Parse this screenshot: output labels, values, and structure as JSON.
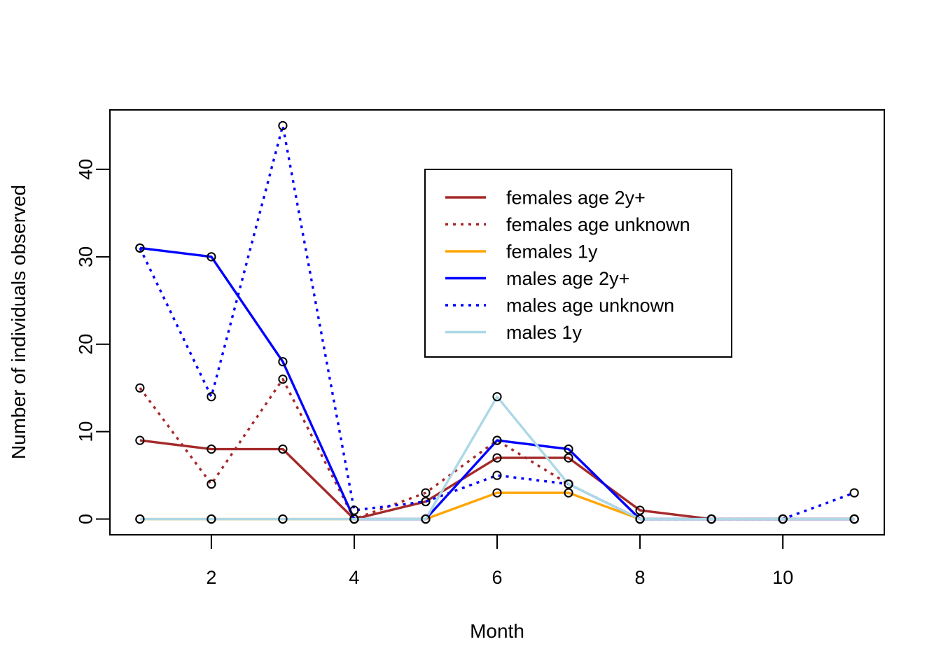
{
  "chart_data": {
    "type": "line",
    "title": "",
    "xlabel": "Month",
    "ylabel": "Number of individuals observed",
    "xlim": [
      0.58,
      11.42
    ],
    "ylim": [
      -1.8,
      46.8
    ],
    "x_ticks": [
      2,
      4,
      6,
      8,
      10
    ],
    "y_ticks": [
      0,
      10,
      20,
      30,
      40
    ],
    "grid": false,
    "legend_position": "top-right",
    "x": [
      1,
      2,
      3,
      4,
      5,
      6,
      7,
      8,
      9,
      10,
      11
    ],
    "series": [
      {
        "name": "females age 2y+",
        "color": "#a52a2a",
        "dash": "solid",
        "values": [
          9,
          8,
          8,
          0,
          2,
          7,
          7,
          1,
          0,
          0,
          0
        ]
      },
      {
        "name": "females age unknown",
        "color": "#a52a2a",
        "dash": "dotted",
        "values": [
          15,
          4,
          16,
          0,
          3,
          9,
          4,
          0,
          0,
          0,
          0
        ]
      },
      {
        "name": "females 1y",
        "color": "#ffa500",
        "dash": "solid",
        "values": [
          0,
          0,
          0,
          0,
          0,
          3,
          3,
          0,
          0,
          0,
          0
        ]
      },
      {
        "name": "males age 2y+",
        "color": "#0000ff",
        "dash": "solid",
        "values": [
          31,
          30,
          18,
          0,
          0,
          9,
          8,
          0,
          0,
          0,
          0
        ]
      },
      {
        "name": "males age unknown",
        "color": "#0000ff",
        "dash": "dotted",
        "values": [
          31,
          14,
          45,
          1,
          2,
          5,
          4,
          0,
          0,
          0,
          3
        ]
      },
      {
        "name": "males 1y",
        "color": "#add8e6",
        "dash": "solid",
        "values": [
          0,
          0,
          0,
          0,
          0,
          14,
          4,
          0,
          0,
          0,
          0
        ]
      }
    ]
  }
}
